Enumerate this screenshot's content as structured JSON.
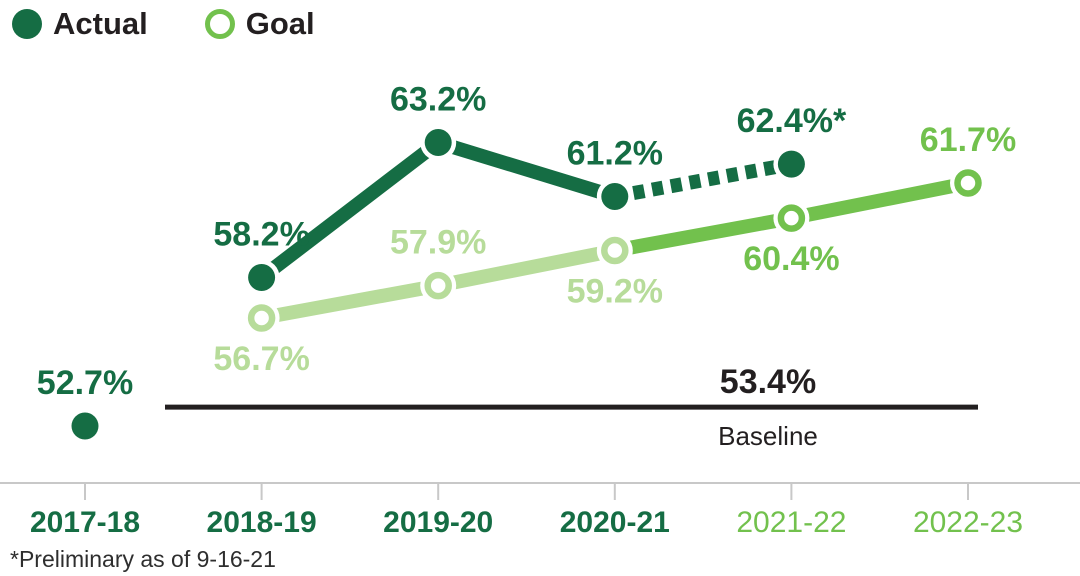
{
  "colors": {
    "dark_green": "#156d44",
    "medium_green": "#72c14d",
    "light_green": "#b7dc9a",
    "text_dark": "#231f20",
    "axis_gray": "#c8c8c8",
    "footnote_color": "#2e2e2e",
    "background": "#ffffff"
  },
  "legend": {
    "actual_label": "Actual",
    "goal_label": "Goal"
  },
  "footnote": "*Preliminary as of 9-16-21",
  "chart_data": {
    "type": "line",
    "title": "",
    "xlabel": "",
    "ylabel": "",
    "grid": false,
    "legend_position": "top-left",
    "ylim": [
      50,
      65
    ],
    "categories": [
      "2017-18",
      "2018-19",
      "2019-20",
      "2020-21",
      "2021-22",
      "2022-23"
    ],
    "category_styles": [
      "past",
      "past",
      "past",
      "past",
      "future",
      "future"
    ],
    "series": [
      {
        "name": "Actual",
        "marker": "filled",
        "color_key": "dark_green",
        "values": [
          52.7,
          58.2,
          63.2,
          61.2,
          62.4,
          null
        ],
        "labels": [
          "52.7%",
          "58.2%",
          "63.2%",
          "61.2%",
          "62.4%*",
          ""
        ],
        "label_pos": [
          "above",
          "above",
          "above",
          "above",
          "above",
          ""
        ],
        "segments": [
          {
            "from": 1,
            "to": 3,
            "style": "solid"
          },
          {
            "from": 3,
            "to": 4,
            "style": "dashed"
          }
        ]
      },
      {
        "name": "Goal",
        "marker": "open",
        "values": [
          null,
          56.7,
          57.9,
          59.2,
          60.4,
          61.7
        ],
        "labels": [
          "",
          "56.7%",
          "57.9%",
          "59.2%",
          "60.4%",
          "61.7%"
        ],
        "label_pos": [
          "",
          "below",
          "above",
          "below",
          "below",
          "above"
        ],
        "point_color_keys": [
          "",
          "light_green",
          "light_green",
          "light_green",
          "medium_green",
          "medium_green"
        ],
        "segments": [
          {
            "from": 1,
            "to": 3,
            "style": "light"
          },
          {
            "from": 3,
            "to": 5,
            "style": "medium"
          }
        ]
      }
    ],
    "baseline": {
      "value": 53.4,
      "label": "53.4%",
      "sublabel": "Baseline"
    }
  }
}
